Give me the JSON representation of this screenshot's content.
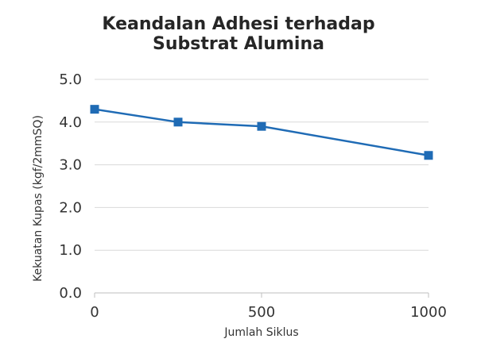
{
  "chart_data": {
    "type": "line",
    "title_lines": [
      "Keandalan Adhesi terhadap",
      "Substrat Alumina"
    ],
    "xlabel": "Jumlah Siklus",
    "ylabel": "Kekuatan Kupas (kgf/2mmSQ)",
    "x": [
      0,
      250,
      500,
      1000
    ],
    "series": [
      {
        "values": [
          4.3,
          4.0,
          3.9,
          3.22
        ]
      }
    ],
    "xlim": [
      0,
      1000
    ],
    "ylim": [
      0,
      5
    ],
    "x_ticks": [
      0,
      500,
      1000
    ],
    "x_tick_labels": [
      "0",
      "500",
      "1000"
    ],
    "y_ticks": [
      0,
      1,
      2,
      3,
      4,
      5
    ],
    "y_tick_labels": [
      "0.0",
      "1.0",
      "2.0",
      "3.0",
      "4.0",
      "5.0"
    ],
    "grid": true,
    "legend": "none",
    "colors": {
      "series": "#1f6bb5",
      "grid": "#d9d9d9",
      "axis": "#bfbfbf"
    }
  }
}
